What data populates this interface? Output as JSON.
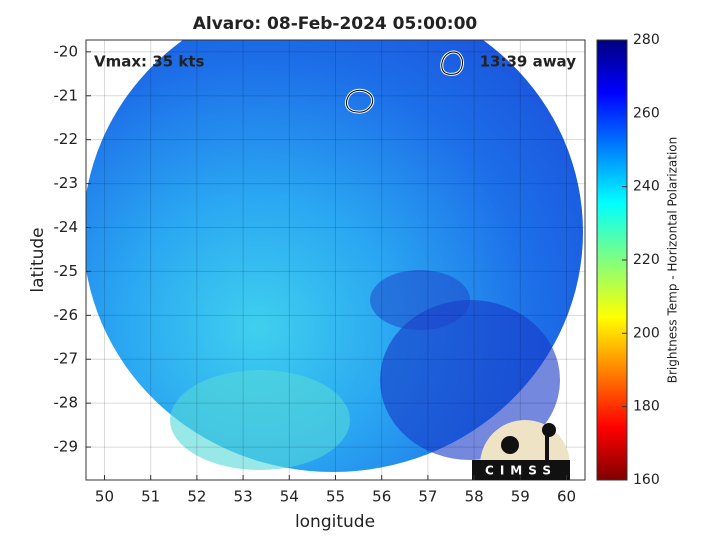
{
  "chart_data": {
    "type": "image",
    "title": "Alvaro: 08-Feb-2024 05:00:00",
    "annotations": [
      "Vmax: 35 kts",
      "13:39 away"
    ],
    "xlabel": "longitude",
    "ylabel": "latitude",
    "xlim": [
      49.6,
      60.4
    ],
    "ylim": [
      -29.75,
      -19.73
    ],
    "xticks": [
      50,
      51,
      52,
      53,
      54,
      55,
      56,
      57,
      58,
      59,
      60
    ],
    "yticks": [
      -20,
      -21,
      -22,
      -23,
      -24,
      -25,
      -26,
      -27,
      -28,
      -29
    ],
    "grid": true,
    "colorbar": {
      "label": "Brightness Temp - Horizontal Polarization",
      "lim": [
        160,
        280
      ],
      "ticks": [
        160,
        180,
        200,
        220,
        240,
        260,
        280
      ]
    },
    "logo": "CIMSS"
  }
}
